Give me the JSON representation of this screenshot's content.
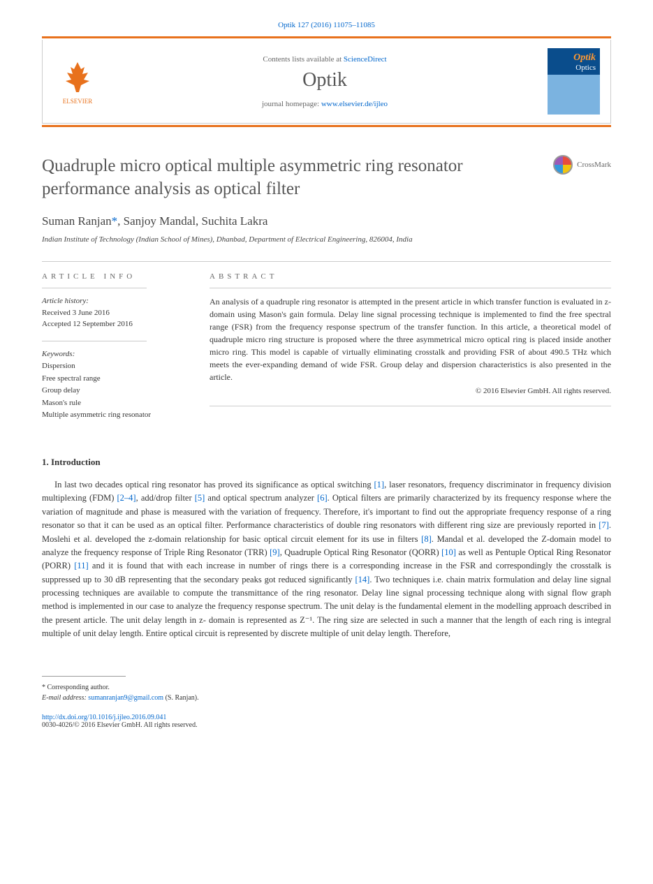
{
  "citation": {
    "journal": "Optik",
    "volume": "127",
    "year": "(2016)",
    "pages": "11075–11085"
  },
  "header": {
    "publisher": "ELSEVIER",
    "contents_prefix": "Contents lists available at ",
    "contents_link": "ScienceDirect",
    "journal_name": "Optik",
    "homepage_prefix": "journal homepage: ",
    "homepage_url": "www.elsevier.de/ijleo",
    "cover_title": "Optik",
    "cover_subtitle": "Optics"
  },
  "crossmark": {
    "label": "CrossMark"
  },
  "article": {
    "title": "Quadruple micro optical multiple asymmetric ring resonator performance analysis as optical filter",
    "authors_text": "Suman Ranjan",
    "authors_rest": ", Sanjoy Mandal, Suchita Lakra",
    "corr_marker": "*",
    "affiliation": "Indian Institute of Technology (Indian School of Mines), Dhanbad, Department of Electrical Engineering, 826004, India"
  },
  "article_info": {
    "heading": "ARTICLE INFO",
    "history_label": "Article history:",
    "received": "Received 3 June 2016",
    "accepted": "Accepted 12 September 2016",
    "keywords_label": "Keywords:",
    "keywords": [
      "Dispersion",
      "Free spectral range",
      "Group delay",
      "Mason's rule",
      "Multiple asymmetric ring resonator"
    ]
  },
  "abstract": {
    "heading": "ABSTRACT",
    "text": "An analysis of a quadruple ring resonator is attempted in the present article in which transfer function is evaluated in z-domain using Mason's gain formula. Delay line signal processing technique is implemented to find the free spectral range (FSR) from the frequency response spectrum of the transfer function. In this article, a theoretical model of quadruple micro ring structure is proposed where the three asymmetrical micro optical ring is placed inside another micro ring. This model is capable of virtually eliminating crosstalk and providing FSR of about 490.5 THz which meets the ever-expanding demand of wide FSR. Group delay and dispersion characteristics is also presented in the article.",
    "copyright": "© 2016 Elsevier GmbH. All rights reserved."
  },
  "introduction": {
    "heading": "1. Introduction",
    "paragraph": "In last two decades optical ring resonator has proved its significance as optical switching [1], laser resonators, frequency discriminator in frequency division multiplexing (FDM) [2–4], add/drop filter [5] and optical spectrum analyzer [6]. Optical filters are primarily characterized by its frequency response where the variation of magnitude and phase is measured with the variation of frequency. Therefore, it's important to find out the appropriate frequency response of a ring resonator so that it can be used as an optical filter. Performance characteristics of double ring resonators with different ring size are previously reported in [7]. Moslehi et al. developed the z-domain relationship for basic optical circuit element for its use in filters [8]. Mandal et al. developed the Z-domain model to analyze the frequency response of Triple Ring Resonator (TRR) [9], Quadruple Optical Ring Resonator (QORR) [10] as well as Pentuple Optical Ring Resonator (PORR) [11] and it is found that with each increase in number of rings there is a corresponding increase in the FSR and correspondingly the crosstalk is suppressed up to 30 dB representing that the secondary peaks got reduced significantly [14]. Two techniques i.e. chain matrix formulation and delay line signal processing techniques are available to compute the transmittance of the ring resonator. Delay line signal processing technique along with signal flow graph method is implemented in our case to analyze the frequency response spectrum. The unit delay is the fundamental element in the modelling approach described in the present article. The unit delay length in z- domain is represented as Z⁻¹. The ring size are selected in such a manner that the length of each ring is integral multiple of unit delay length. Entire optical circuit is represented by discrete multiple of unit delay length. Therefore,",
    "refs": [
      "[1]",
      "[2–4]",
      "[5]",
      "[6]",
      "[7]",
      "[8]",
      "[9]",
      "[10]",
      "[11]",
      "[14]"
    ]
  },
  "footer": {
    "corr_label": "* Corresponding author.",
    "email_label": "E-mail address: ",
    "email": "sumanranjan9@gmail.com",
    "email_author": " (S. Ranjan).",
    "doi": "http://dx.doi.org/10.1016/j.ijleo.2016.09.041",
    "bottom_copyright": "0030-4026/© 2016 Elsevier GmbH. All rights reserved."
  },
  "colors": {
    "link": "#0066cc",
    "accent": "#e8711c",
    "text": "#333333",
    "gray": "#666666"
  }
}
